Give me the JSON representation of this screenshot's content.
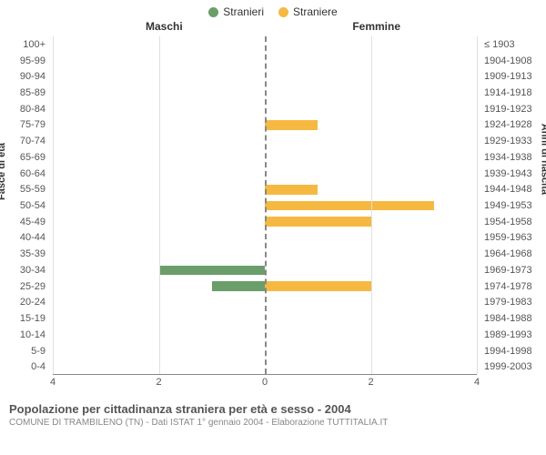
{
  "legend": {
    "male": {
      "label": "Stranieri",
      "color": "#6b9e6b"
    },
    "female": {
      "label": "Straniere",
      "color": "#f5b942"
    }
  },
  "headers": {
    "left": "Maschi",
    "right": "Femmine"
  },
  "axis_labels": {
    "left": "Fasce di età",
    "right": "Anni di nascita"
  },
  "x": {
    "max": 4,
    "ticks": [
      4,
      2,
      0,
      2,
      4
    ]
  },
  "grid_color": "#e0e0e0",
  "center_line_color": "#888888",
  "background_color": "#ffffff",
  "categories": [
    {
      "age": "100+",
      "birth": "≤ 1903",
      "m": 0,
      "f": 0
    },
    {
      "age": "95-99",
      "birth": "1904-1908",
      "m": 0,
      "f": 0
    },
    {
      "age": "90-94",
      "birth": "1909-1913",
      "m": 0,
      "f": 0
    },
    {
      "age": "85-89",
      "birth": "1914-1918",
      "m": 0,
      "f": 0
    },
    {
      "age": "80-84",
      "birth": "1919-1923",
      "m": 0,
      "f": 0
    },
    {
      "age": "75-79",
      "birth": "1924-1928",
      "m": 0,
      "f": 1
    },
    {
      "age": "70-74",
      "birth": "1929-1933",
      "m": 0,
      "f": 0
    },
    {
      "age": "65-69",
      "birth": "1934-1938",
      "m": 0,
      "f": 0
    },
    {
      "age": "60-64",
      "birth": "1939-1943",
      "m": 0,
      "f": 0
    },
    {
      "age": "55-59",
      "birth": "1944-1948",
      "m": 0,
      "f": 1
    },
    {
      "age": "50-54",
      "birth": "1949-1953",
      "m": 0,
      "f": 3.2
    },
    {
      "age": "45-49",
      "birth": "1954-1958",
      "m": 0,
      "f": 2
    },
    {
      "age": "40-44",
      "birth": "1959-1963",
      "m": 0,
      "f": 0
    },
    {
      "age": "35-39",
      "birth": "1964-1968",
      "m": 0,
      "f": 0
    },
    {
      "age": "30-34",
      "birth": "1969-1973",
      "m": 2,
      "f": 0
    },
    {
      "age": "25-29",
      "birth": "1974-1978",
      "m": 1,
      "f": 2
    },
    {
      "age": "20-24",
      "birth": "1979-1983",
      "m": 0,
      "f": 0
    },
    {
      "age": "15-19",
      "birth": "1984-1988",
      "m": 0,
      "f": 0
    },
    {
      "age": "10-14",
      "birth": "1989-1993",
      "m": 0,
      "f": 0
    },
    {
      "age": "5-9",
      "birth": "1994-1998",
      "m": 0,
      "f": 0
    },
    {
      "age": "0-4",
      "birth": "1999-2003",
      "m": 0,
      "f": 0
    }
  ],
  "footer": {
    "title": "Popolazione per cittadinanza straniera per età e sesso - 2004",
    "subtitle": "COMUNE DI TRAMBILENO (TN) - Dati ISTAT 1° gennaio 2004 - Elaborazione TUTTITALIA.IT"
  }
}
